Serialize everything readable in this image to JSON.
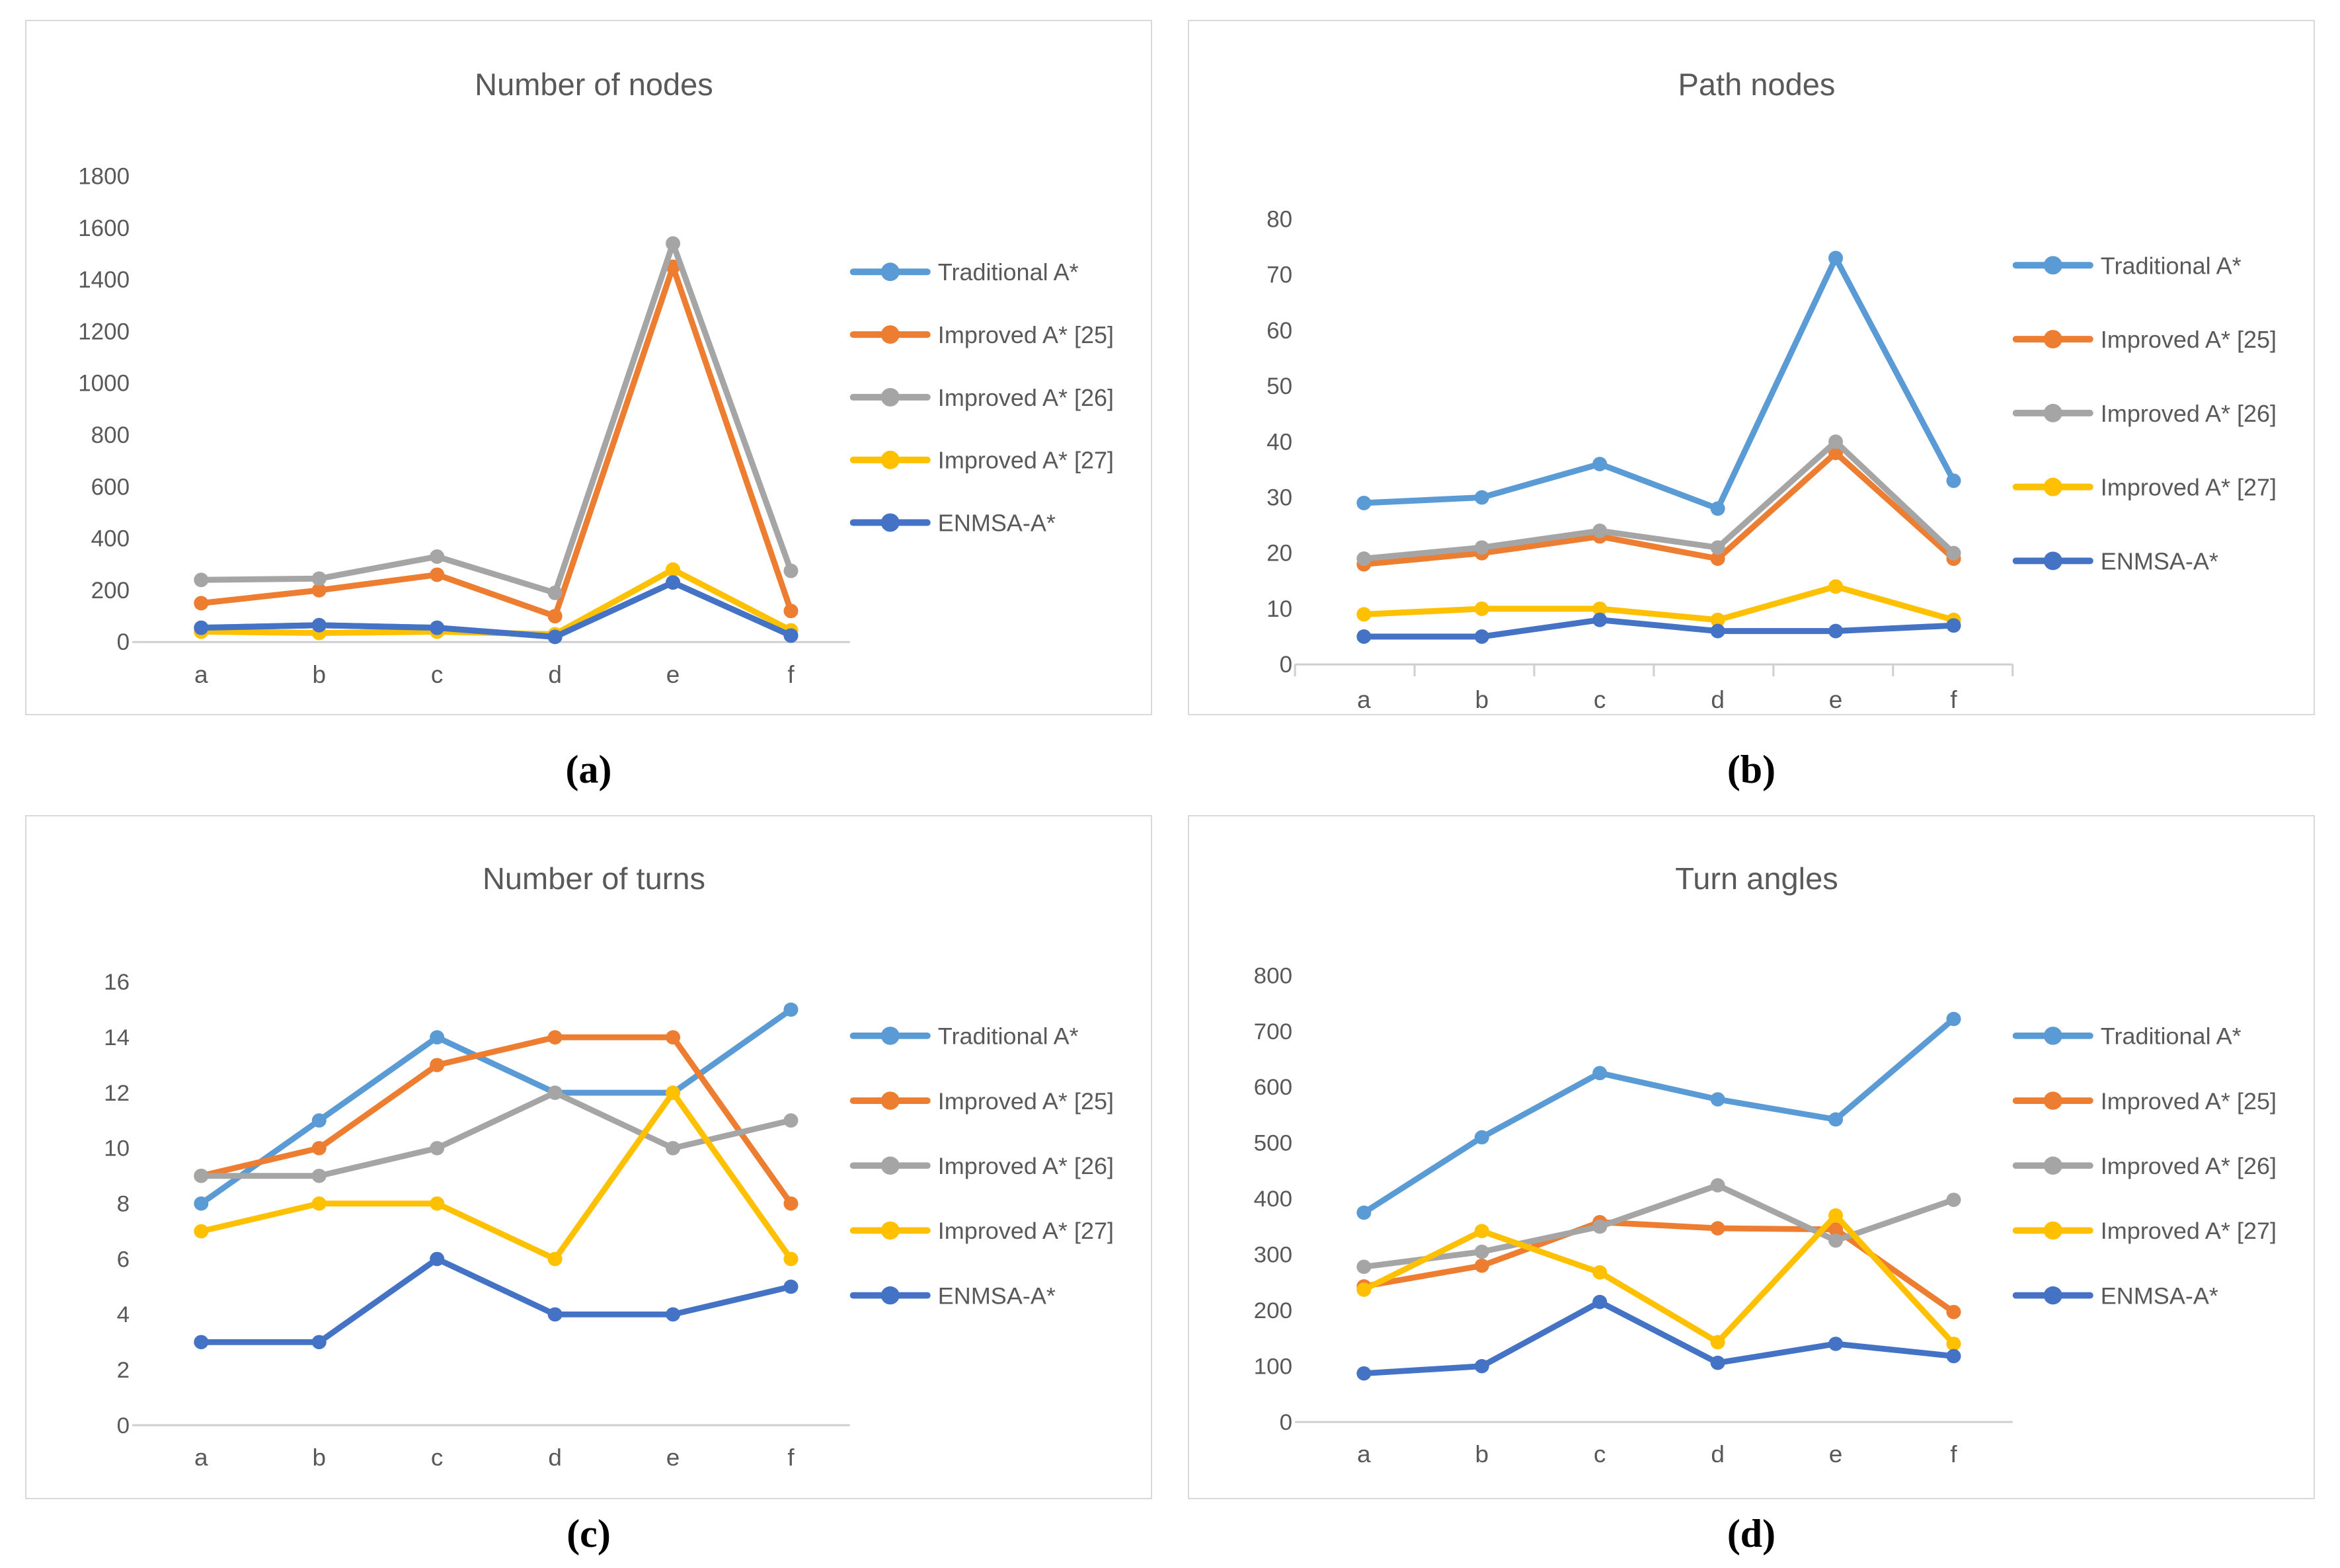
{
  "figure": {
    "captions": [
      "(a)",
      "(b)",
      "(c)",
      "(d)"
    ]
  },
  "palette": {
    "traditional": "#5B9BD5",
    "improved25": "#ED7D31",
    "improved26": "#A5A5A5",
    "improved27": "#FFC000",
    "enmsa": "#4472C4",
    "title_text": "#595959",
    "tick_text": "#595959",
    "axis_line": "#D0CECE",
    "panel_border": "#D9D9D9"
  },
  "chart_data": [
    {
      "id": "a",
      "type": "line",
      "title": "Number of nodes",
      "categories": [
        "a",
        "b",
        "c",
        "d",
        "e",
        "f"
      ],
      "ylim": [
        0,
        1800
      ],
      "ytick_step": 200,
      "x_axis_ticks": false,
      "grid": false,
      "legend_position": "right",
      "series": [
        {
          "name": "Traditional A*",
          "color_key": "traditional",
          "values": [
            55,
            65,
            55,
            20,
            230,
            25
          ]
        },
        {
          "name": "Improved A* [25]",
          "color_key": "improved25",
          "values": [
            150,
            200,
            260,
            100,
            1450,
            120
          ]
        },
        {
          "name": "Improved A* [26]",
          "color_key": "improved26",
          "values": [
            240,
            245,
            330,
            190,
            1540,
            275
          ]
        },
        {
          "name": "Improved A* [27]",
          "color_key": "improved27",
          "values": [
            40,
            35,
            40,
            30,
            280,
            45
          ]
        },
        {
          "name": "ENMSA-A*",
          "color_key": "enmsa",
          "values": [
            55,
            65,
            55,
            20,
            230,
            25
          ]
        }
      ]
    },
    {
      "id": "b",
      "type": "line",
      "title": "Path nodes",
      "categories": [
        "a",
        "b",
        "c",
        "d",
        "e",
        "f"
      ],
      "ylim": [
        0,
        80
      ],
      "ytick_step": 10,
      "x_axis_ticks": true,
      "grid": false,
      "legend_position": "right",
      "series": [
        {
          "name": "Traditional A*",
          "color_key": "traditional",
          "values": [
            29,
            30,
            36,
            28,
            73,
            33
          ]
        },
        {
          "name": "Improved A* [25]",
          "color_key": "improved25",
          "values": [
            18,
            20,
            23,
            19,
            38,
            19
          ]
        },
        {
          "name": "Improved A* [26]",
          "color_key": "improved26",
          "values": [
            19,
            21,
            24,
            21,
            40,
            20
          ]
        },
        {
          "name": "Improved A* [27]",
          "color_key": "improved27",
          "values": [
            9,
            10,
            10,
            8,
            14,
            8
          ]
        },
        {
          "name": "ENMSA-A*",
          "color_key": "enmsa",
          "values": [
            5,
            5,
            8,
            6,
            6,
            7
          ]
        }
      ]
    },
    {
      "id": "c",
      "type": "line",
      "title": "Number of turns",
      "categories": [
        "a",
        "b",
        "c",
        "d",
        "e",
        "f"
      ],
      "ylim": [
        0,
        16
      ],
      "ytick_step": 2,
      "x_axis_ticks": false,
      "grid": false,
      "legend_position": "right",
      "series": [
        {
          "name": "Traditional A*",
          "color_key": "traditional",
          "values": [
            8,
            11,
            14,
            12,
            12,
            15
          ]
        },
        {
          "name": "Improved A* [25]",
          "color_key": "improved25",
          "values": [
            9,
            10,
            13,
            14,
            14,
            8
          ]
        },
        {
          "name": "Improved A* [26]",
          "color_key": "improved26",
          "values": [
            9,
            9,
            10,
            12,
            10,
            11
          ]
        },
        {
          "name": "Improved A* [27]",
          "color_key": "improved27",
          "values": [
            7,
            8,
            8,
            6,
            12,
            6
          ]
        },
        {
          "name": "ENMSA-A*",
          "color_key": "enmsa",
          "values": [
            3,
            3,
            6,
            4,
            4,
            5
          ]
        }
      ]
    },
    {
      "id": "d",
      "type": "line",
      "title": "Turn angles",
      "categories": [
        "a",
        "b",
        "c",
        "d",
        "e",
        "f"
      ],
      "ylim": [
        0,
        800
      ],
      "ytick_step": 100,
      "x_axis_ticks": false,
      "grid": false,
      "legend_position": "right",
      "series": [
        {
          "name": "Traditional A*",
          "color_key": "traditional",
          "values": [
            375,
            510,
            625,
            578,
            542,
            722
          ]
        },
        {
          "name": "Improved A* [25]",
          "color_key": "improved25",
          "values": [
            243,
            280,
            358,
            347,
            345,
            197
          ]
        },
        {
          "name": "Improved A* [26]",
          "color_key": "improved26",
          "values": [
            278,
            305,
            350,
            424,
            325,
            398
          ]
        },
        {
          "name": "Improved A* [27]",
          "color_key": "improved27",
          "values": [
            237,
            342,
            268,
            143,
            370,
            140
          ]
        },
        {
          "name": "ENMSA-A*",
          "color_key": "enmsa",
          "values": [
            87,
            100,
            215,
            106,
            140,
            118
          ]
        }
      ]
    }
  ]
}
